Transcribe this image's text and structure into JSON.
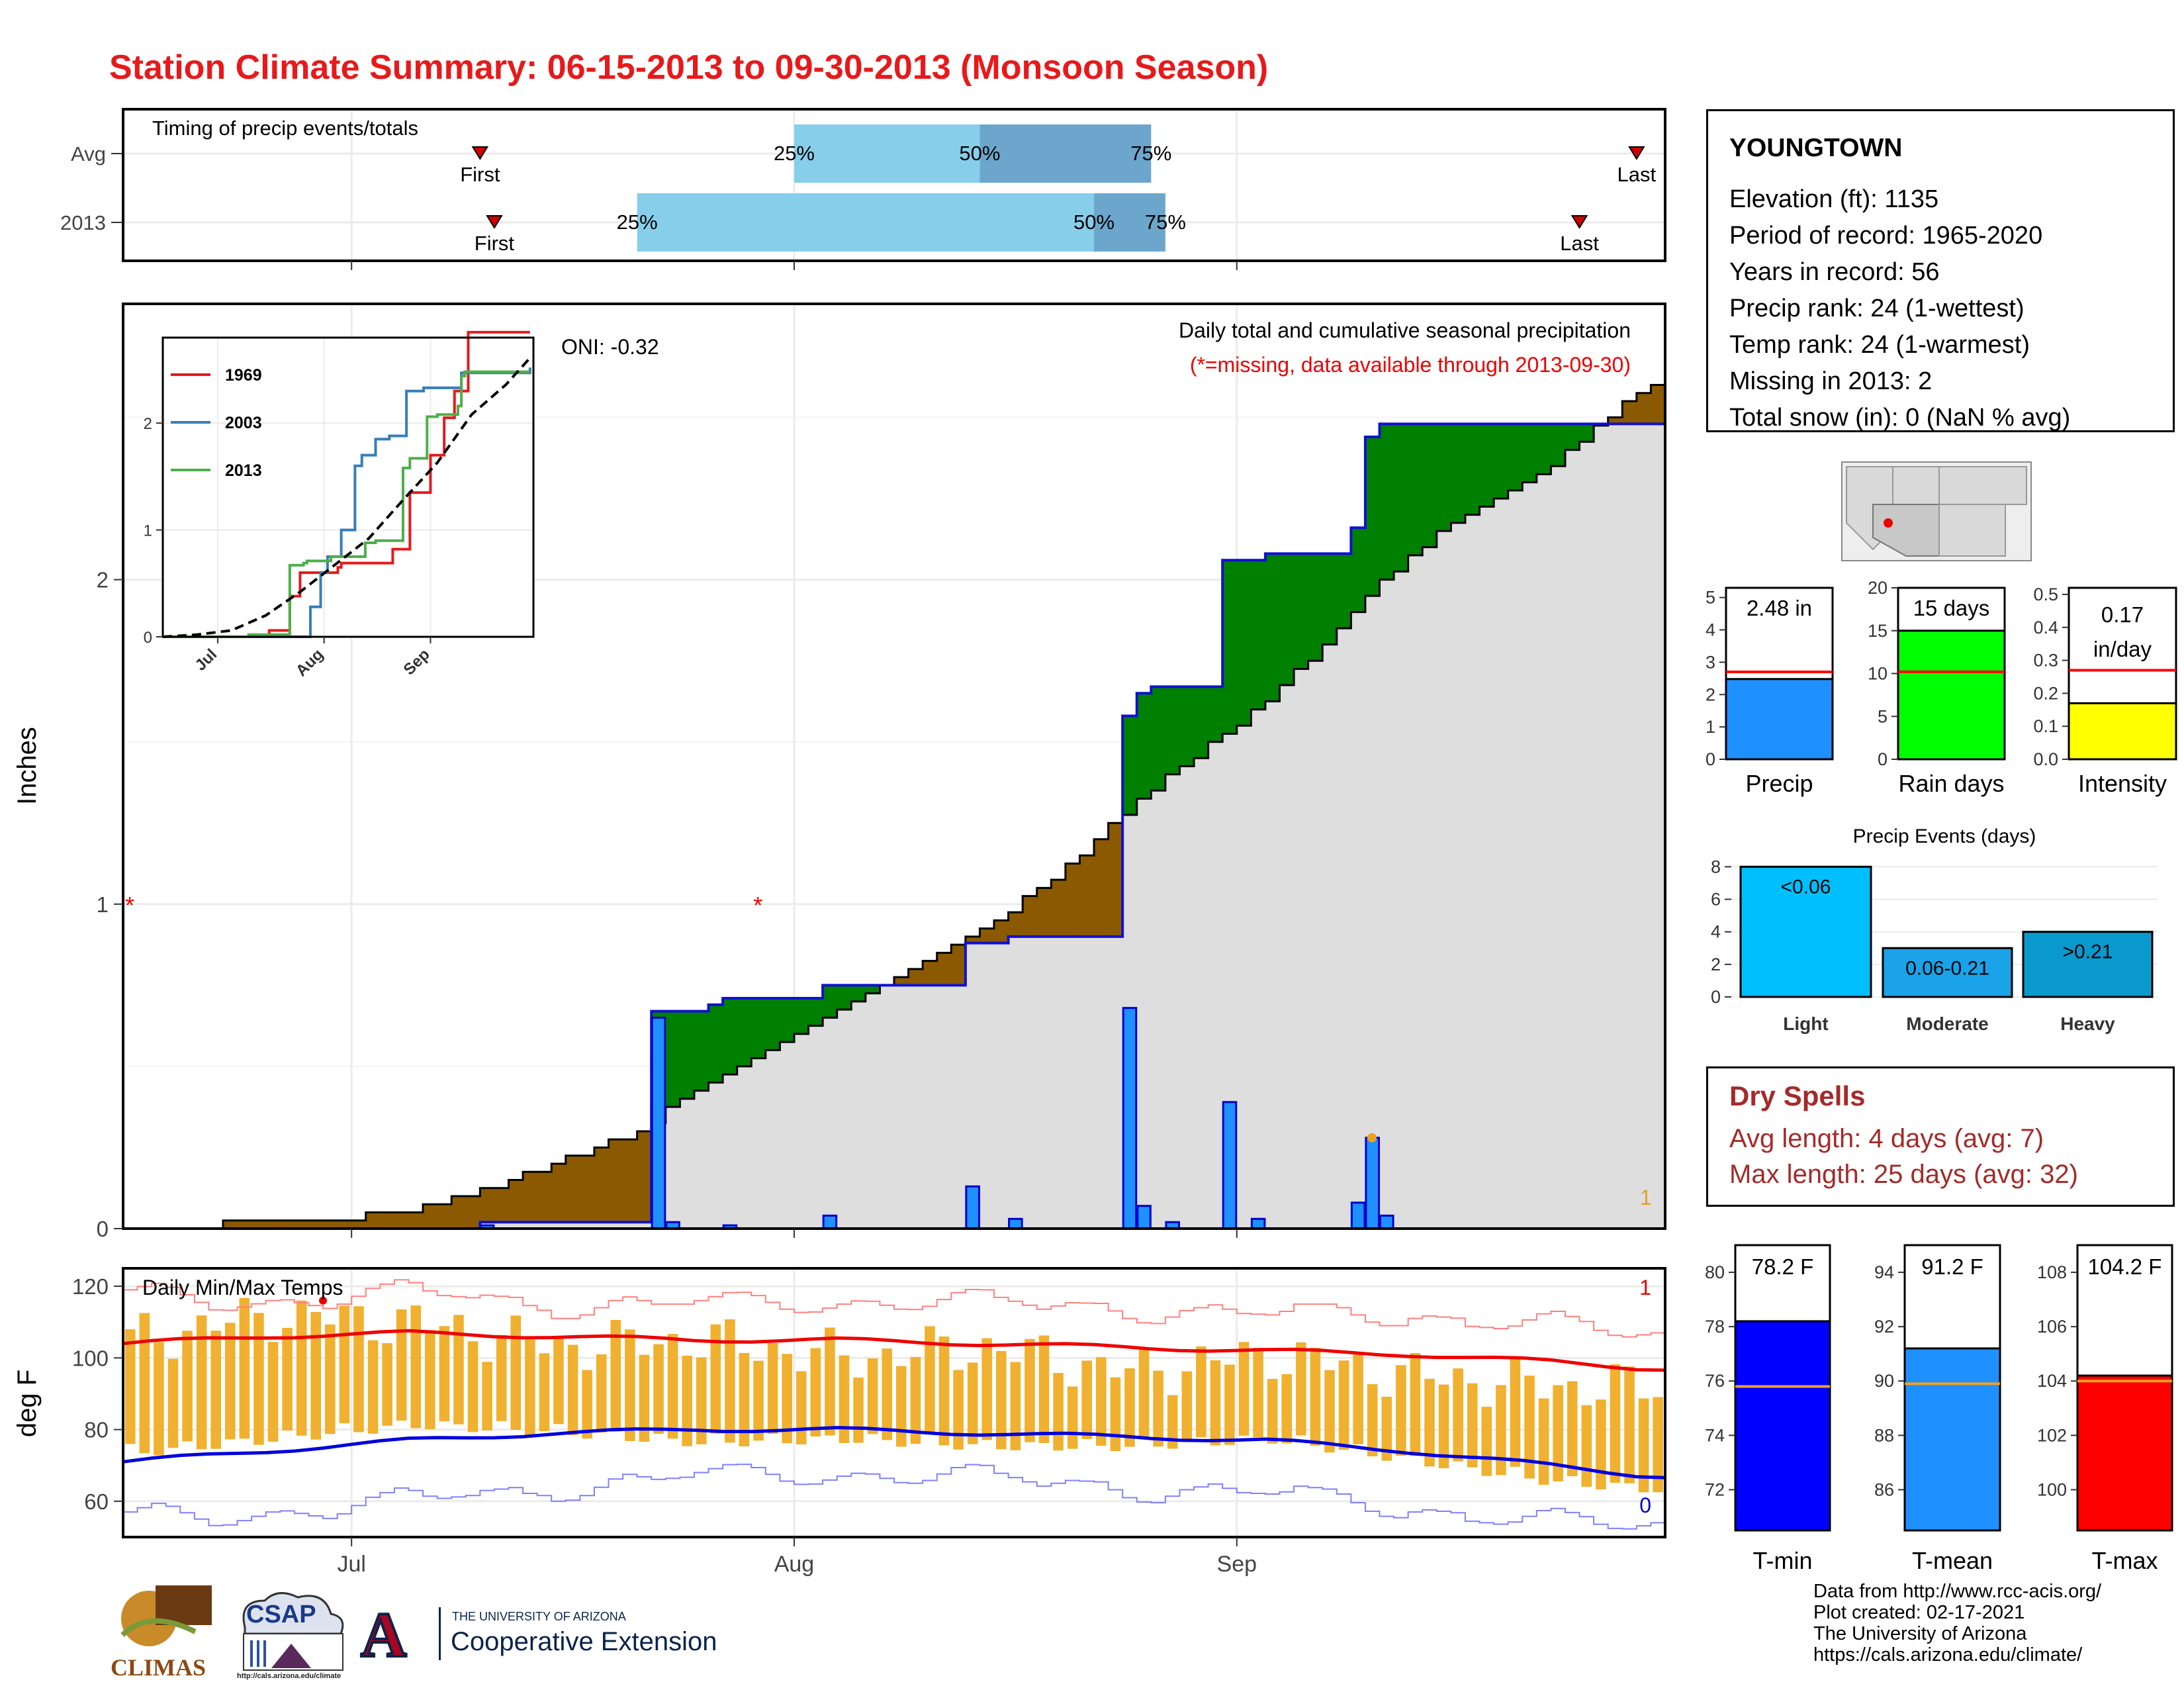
{
  "page": {
    "title": "Station Climate Summary: 06-15-2013 to 09-30-2013 (Monsoon Season)"
  },
  "colors": {
    "title_red": "#e8191b",
    "surplus_green": "#008000",
    "deficit_brown": "#8b5a00",
    "normal_gray": "#dedede",
    "daily_blue": "#1e90ff",
    "timing_light": "#87ceeb",
    "timing_dark": "#6ca6cd",
    "precip_bar": "#1e90ff",
    "raindays_bar": "#00ff00",
    "intensity_bar": "#ffff00",
    "event_light": "#00bfff",
    "event_moderate": "#1aa3e8",
    "event_heavy": "#0a99cc",
    "tmin_bar": "#0000ff",
    "tmean_bar": "#1e90ff",
    "tmax_bar": "#ff0000",
    "dry_spell_text": "#a52a2a",
    "range_bar": "#f0b030"
  },
  "timing_panel": {
    "title": "Timing of precip events/totals",
    "rows": [
      {
        "label": "Avg",
        "first": "07-10",
        "p25": "08-01",
        "p50": "08-14",
        "p75": "08-26",
        "last": "09-29",
        "first_label": "First",
        "last_label": "Last",
        "p25_label": "25%",
        "p50_label": "50%",
        "p75_label": "75%"
      },
      {
        "label": "2013",
        "first": "07-11",
        "p25": "07-21",
        "p50": "08-22",
        "p75": "08-27",
        "last": "09-25",
        "first_label": "First",
        "last_label": "Last",
        "p25_label": "25%",
        "p50_label": "50%",
        "p75_label": "75%"
      }
    ]
  },
  "main_panel": {
    "ylabel": "Inches",
    "y_ticks": [
      "0",
      "1",
      "2"
    ],
    "x_ticks": [
      "Jul",
      "Aug",
      "Sep"
    ],
    "caption_line1": "Daily total and cumulative seasonal precipitation",
    "caption_line2": "(*=missing, data available through 2013-09-30)",
    "oni": "ONI: -0.32",
    "corner_mark": "1",
    "missing_marker": "*"
  },
  "inset": {
    "y_ticks": [
      "0",
      "1",
      "2"
    ],
    "x_ticks": [
      "Jul",
      "Aug",
      "Sep"
    ],
    "legend": [
      {
        "name": "1969",
        "color": "#e41a1c"
      },
      {
        "name": "2003",
        "color": "#377eb8"
      },
      {
        "name": "2013",
        "color": "#4daf4a"
      }
    ]
  },
  "temp_panel": {
    "title": "Daily Min/Max Temps",
    "ylabel": "deg F",
    "y_ticks": [
      "60",
      "80",
      "100",
      "120"
    ],
    "x_ticks": [
      "Jul",
      "Aug",
      "Sep"
    ],
    "corner_top": "1",
    "corner_bottom": "0"
  },
  "station": {
    "name": "YOUNGTOWN",
    "lines": [
      "Elevation (ft): 1135",
      "Period of record: 1965-2020",
      "Years in record: 56",
      "Precip rank: 24 (1-wettest)",
      "Temp rank: 24 (1-warmest)",
      "Missing in 2013: 2",
      "Total snow (in): 0 (NaN % avg)"
    ]
  },
  "summary_bars": [
    {
      "label": "Precip",
      "value_text": "2.48 in",
      "value": 2.48,
      "avg": 2.7,
      "ticks": [
        "0",
        "1",
        "2",
        "3",
        "4",
        "5"
      ],
      "ymax": 5.3
    },
    {
      "label": "Rain days",
      "value_text": "15 days",
      "value": 15,
      "avg": 10.2,
      "ticks": [
        "0",
        "5",
        "10",
        "15",
        "20"
      ],
      "ymax": 20
    },
    {
      "label": "Intensity",
      "value_text_1": "0.17",
      "value_text_2": "in/day",
      "value": 0.17,
      "avg": 0.27,
      "ticks": [
        "0.0",
        "0.1",
        "0.2",
        "0.3",
        "0.4",
        "0.5"
      ],
      "ymax": 0.52
    }
  ],
  "precip_events": {
    "title": "Precip Events (days)",
    "ticks": [
      "0",
      "2",
      "4",
      "6",
      "8"
    ],
    "bars": [
      {
        "label": "Light",
        "inner_label": "<0.06",
        "value": 8
      },
      {
        "label": "Moderate",
        "inner_label": "0.06-0.21",
        "value": 3
      },
      {
        "label": "Heavy",
        "inner_label": ">0.21",
        "value": 4
      }
    ]
  },
  "dry_spells": {
    "title": "Dry Spells",
    "avg_line": "Avg length: 4 days (avg: 7)",
    "max_line": "Max length: 25 days (avg: 32)"
  },
  "temp_bars": [
    {
      "label": "T-min",
      "value_text": "78.2 F",
      "value": 78.2,
      "avg": 75.8,
      "ticks": [
        "72",
        "74",
        "76",
        "78",
        "80"
      ],
      "ymin": 70.5,
      "ymax": 81.0
    },
    {
      "label": "T-mean",
      "value_text": "91.2 F",
      "value": 91.2,
      "avg": 89.9,
      "ticks": [
        "86",
        "88",
        "90",
        "92",
        "94"
      ],
      "ymin": 84.5,
      "ymax": 95.0
    },
    {
      "label": "T-max",
      "value_text": "104.2 F",
      "value": 104.2,
      "avg": 104.0,
      "ticks": [
        "100",
        "102",
        "104",
        "106",
        "108"
      ],
      "ymin": 98.5,
      "ymax": 109.0
    }
  ],
  "credits": [
    "Data from http://www.rcc-acis.org/",
    "Plot created: 02-17-2021",
    "The University of Arizona",
    "https://cals.arizona.edu/climate/"
  ],
  "logos": {
    "climas": "CLIMAS",
    "csap": "CSAP",
    "csap_url": "http://cals.arizona.edu/climate",
    "ua_line1": "THE UNIVERSITY OF ARIZONA",
    "ua_line2": "Cooperative Extension",
    "ua_letter": "A"
  },
  "chart_data": [
    {
      "type": "area",
      "title": "Daily total and cumulative seasonal precipitation",
      "ylabel": "Inches",
      "ylim": [
        0,
        2.85
      ],
      "xlim": [
        "2013-06-15",
        "2013-09-30"
      ],
      "series": [
        {
          "name": "cumulative normal",
          "x": [
            "06-15",
            "06-20",
            "06-25",
            "06-30",
            "07-05",
            "07-10",
            "07-15",
            "07-20",
            "07-25",
            "07-30",
            "08-04",
            "08-09",
            "08-14",
            "08-19",
            "08-24",
            "08-29",
            "09-03",
            "09-08",
            "09-13",
            "09-18",
            "09-23",
            "09-30"
          ],
          "values": [
            0.0,
            0.01,
            0.02,
            0.03,
            0.06,
            0.12,
            0.2,
            0.28,
            0.42,
            0.55,
            0.67,
            0.79,
            0.92,
            1.08,
            1.28,
            1.46,
            1.63,
            1.85,
            2.08,
            2.23,
            2.36,
            2.61
          ]
        },
        {
          "name": "cumulative 2013",
          "x": [
            "06-15",
            "07-09",
            "07-10",
            "07-21",
            "07-22",
            "07-26",
            "07-27",
            "08-02",
            "08-03",
            "08-12",
            "08-13",
            "08-15",
            "08-16",
            "08-23",
            "08-24",
            "08-25",
            "08-26",
            "08-30",
            "08-31",
            "09-02",
            "09-03",
            "09-08",
            "09-09",
            "09-10",
            "09-11",
            "09-30"
          ],
          "values": [
            0.0,
            0.0,
            0.02,
            0.02,
            0.67,
            0.69,
            0.71,
            0.71,
            0.75,
            0.75,
            0.88,
            0.88,
            0.9,
            0.9,
            1.58,
            1.65,
            1.67,
            1.67,
            2.06,
            2.06,
            2.08,
            2.08,
            2.16,
            2.44,
            2.48,
            2.48
          ]
        }
      ],
      "daily": {
        "dates": [
          "07-10",
          "07-22",
          "07-23",
          "07-27",
          "08-03",
          "08-13",
          "08-16",
          "08-24",
          "08-25",
          "08-27",
          "08-31",
          "09-02",
          "09-09",
          "09-10",
          "09-11"
        ],
        "values": [
          0.01,
          0.65,
          0.02,
          0.01,
          0.04,
          0.13,
          0.03,
          0.68,
          0.07,
          0.02,
          0.39,
          0.03,
          0.08,
          0.28,
          0.04
        ]
      },
      "missing": [
        "06-15",
        "07-29"
      ]
    },
    {
      "type": "line",
      "title": "inset cumulative precipitation",
      "ylim": [
        0,
        2.8
      ],
      "series": [
        {
          "name": "1969",
          "x": [
            "06-15",
            "07-15",
            "07-16",
            "07-20",
            "07-22",
            "07-25",
            "08-05",
            "08-06",
            "08-20",
            "08-21",
            "08-26",
            "09-01",
            "09-05",
            "09-08",
            "09-12",
            "09-30"
          ],
          "values": [
            0.0,
            0.0,
            0.06,
            0.06,
            0.38,
            0.6,
            0.65,
            0.69,
            0.69,
            0.82,
            1.35,
            1.7,
            2.05,
            2.3,
            2.85,
            2.85
          ]
        },
        {
          "name": "2003",
          "x": [
            "06-15",
            "07-27",
            "07-28",
            "07-31",
            "08-02",
            "08-06",
            "08-10",
            "08-12",
            "08-16",
            "08-20",
            "08-25",
            "08-30",
            "09-05",
            "09-10",
            "09-30"
          ],
          "values": [
            0.0,
            0.0,
            0.28,
            0.6,
            0.75,
            1.0,
            1.6,
            1.7,
            1.85,
            1.88,
            2.3,
            2.33,
            2.33,
            2.47,
            2.52
          ]
        },
        {
          "name": "2013",
          "x": [
            "06-15",
            "07-09",
            "07-10",
            "07-21",
            "07-22",
            "07-26",
            "07-27",
            "08-02",
            "08-03",
            "08-12",
            "08-13",
            "08-15",
            "08-16",
            "08-23",
            "08-24",
            "08-26",
            "08-30",
            "08-31",
            "09-03",
            "09-09",
            "09-10",
            "09-11",
            "09-30"
          ],
          "values": [
            0.0,
            0.0,
            0.02,
            0.02,
            0.67,
            0.69,
            0.71,
            0.71,
            0.75,
            0.75,
            0.88,
            0.88,
            0.9,
            0.9,
            1.58,
            1.67,
            1.67,
            2.06,
            2.08,
            2.16,
            2.44,
            2.48,
            2.48
          ]
        },
        {
          "name": "average",
          "x": [
            "06-15",
            "06-25",
            "07-05",
            "07-15",
            "07-25",
            "08-04",
            "08-14",
            "08-24",
            "09-03",
            "09-13",
            "09-23",
            "09-30"
          ],
          "values": [
            0.0,
            0.02,
            0.06,
            0.2,
            0.42,
            0.67,
            0.92,
            1.28,
            1.63,
            2.08,
            2.36,
            2.61
          ]
        }
      ]
    },
    {
      "type": "line",
      "title": "Daily Min/Max Temps",
      "ylabel": "deg F",
      "ylim": [
        50,
        125
      ],
      "x": [
        "06-15",
        "06-25",
        "07-05",
        "07-15",
        "07-25",
        "08-04",
        "08-14",
        "08-24",
        "09-03",
        "09-13",
        "09-23",
        "09-30"
      ],
      "series": [
        {
          "name": "avg max",
          "values": [
            104,
            106,
            107,
            106,
            105,
            105,
            104,
            103,
            102,
            101,
            99,
            97
          ]
        },
        {
          "name": "avg min",
          "values": [
            71,
            74,
            77,
            79,
            80,
            80,
            79,
            78,
            77,
            74,
            70,
            67
          ]
        },
        {
          "name": "record high",
          "values": [
            117,
            116,
            118,
            115,
            115,
            116,
            115,
            114,
            112,
            112,
            109,
            106
          ]
        },
        {
          "name": "record low",
          "values": [
            55,
            57,
            60,
            64,
            67,
            68,
            66,
            64,
            62,
            58,
            54,
            53
          ]
        },
        {
          "name": "2013 max",
          "values": [
            105,
            112,
            110,
            103,
            105,
            100,
            103,
            96,
            101,
            95,
            92,
            92
          ]
        },
        {
          "name": "2013 min",
          "values": [
            76,
            80,
            84,
            82,
            79,
            80,
            78,
            78,
            80,
            74,
            68,
            66
          ]
        }
      ]
    }
  ]
}
